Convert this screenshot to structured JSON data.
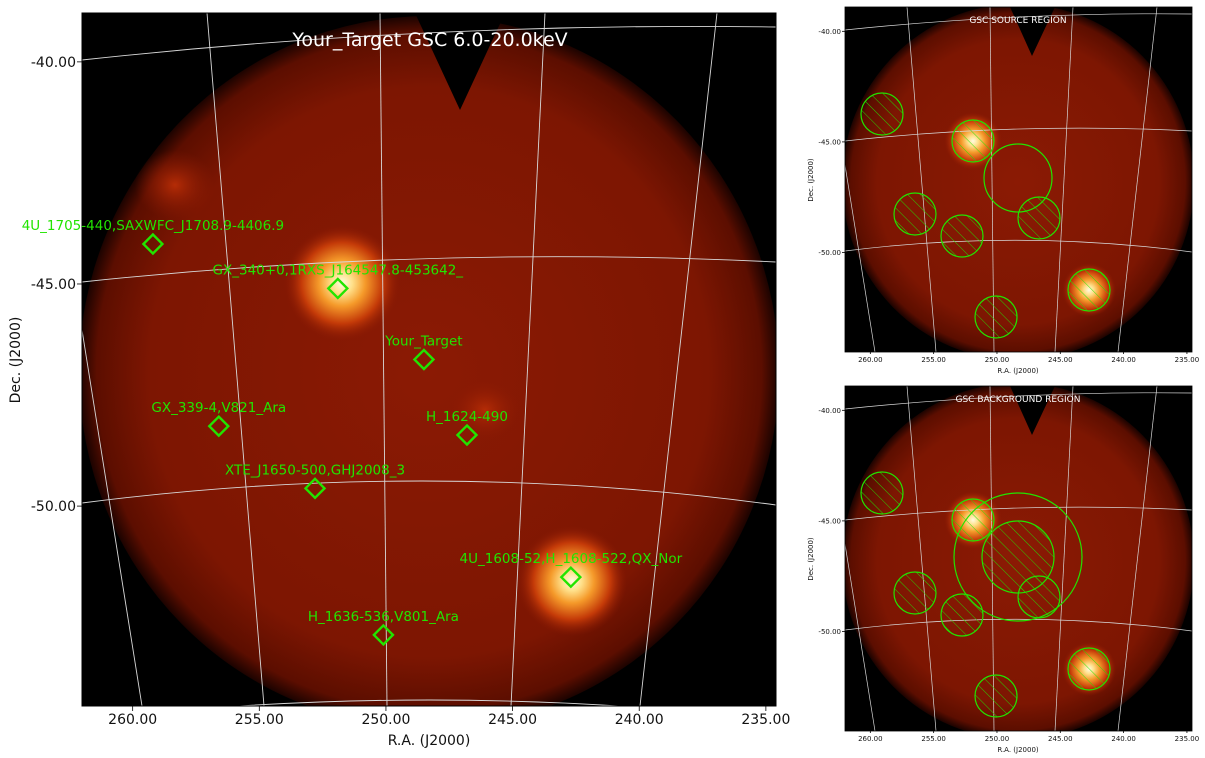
{
  "main_panel": {
    "title": "Your_Target GSC 6.0-20.0keV",
    "xlabel": "R.A. (J2000)",
    "ylabel": "Dec. (J2000)",
    "x_ticks": [
      "260.00",
      "255.00",
      "250.00",
      "245.00",
      "240.00",
      "235.00"
    ],
    "y_ticks": [
      "-40.00",
      "-45.00",
      "-50.00"
    ],
    "sources": [
      {
        "label": "4U_1705-440,SAXWFC_J1708.9-4406.9",
        "ra": 259.2,
        "dec": -44.1
      },
      {
        "label": "GX_340+0,1RXS_J164547.8-453642_",
        "ra": 251.9,
        "dec": -45.1
      },
      {
        "label": "Your_Target",
        "ra": 248.5,
        "dec": -46.7
      },
      {
        "label": "GX_339-4,V821_Ara",
        "ra": 256.6,
        "dec": -48.2
      },
      {
        "label": "H_1624-490",
        "ra": 246.8,
        "dec": -48.4
      },
      {
        "label": "XTE_J1650-500,GHJ2008_3",
        "ra": 252.8,
        "dec": -49.6
      },
      {
        "label": "4U_1608-52,H_1608-522,QX_Nor",
        "ra": 242.7,
        "dec": -51.6
      },
      {
        "label": "H_1636-536,V801_Ara",
        "ra": 250.1,
        "dec": -52.9
      }
    ]
  },
  "source_region_panel": {
    "title": "GSC SOURCE REGION",
    "xlabel": "R.A. (J2000)",
    "ylabel": "Dec. (J2000)",
    "x_ticks": [
      "260.00",
      "255.00",
      "250.00",
      "245.00",
      "240.00",
      "235.00"
    ],
    "y_ticks": [
      "-40.00",
      "-45.00",
      "-50.00"
    ]
  },
  "background_region_panel": {
    "title": "GSC BACKGROUND REGION",
    "xlabel": "R.A. (J2000)",
    "ylabel": "Dec. (J2000)",
    "x_ticks": [
      "260.00",
      "255.00",
      "250.00",
      "245.00",
      "240.00",
      "235.00"
    ],
    "y_ticks": [
      "-40.00",
      "-45.00",
      "-50.00"
    ]
  },
  "colors": {
    "background_sky": "#7a1402",
    "marker": "#22e400",
    "grid": "#d8d8d8",
    "bright_source": "#fff2b8"
  }
}
